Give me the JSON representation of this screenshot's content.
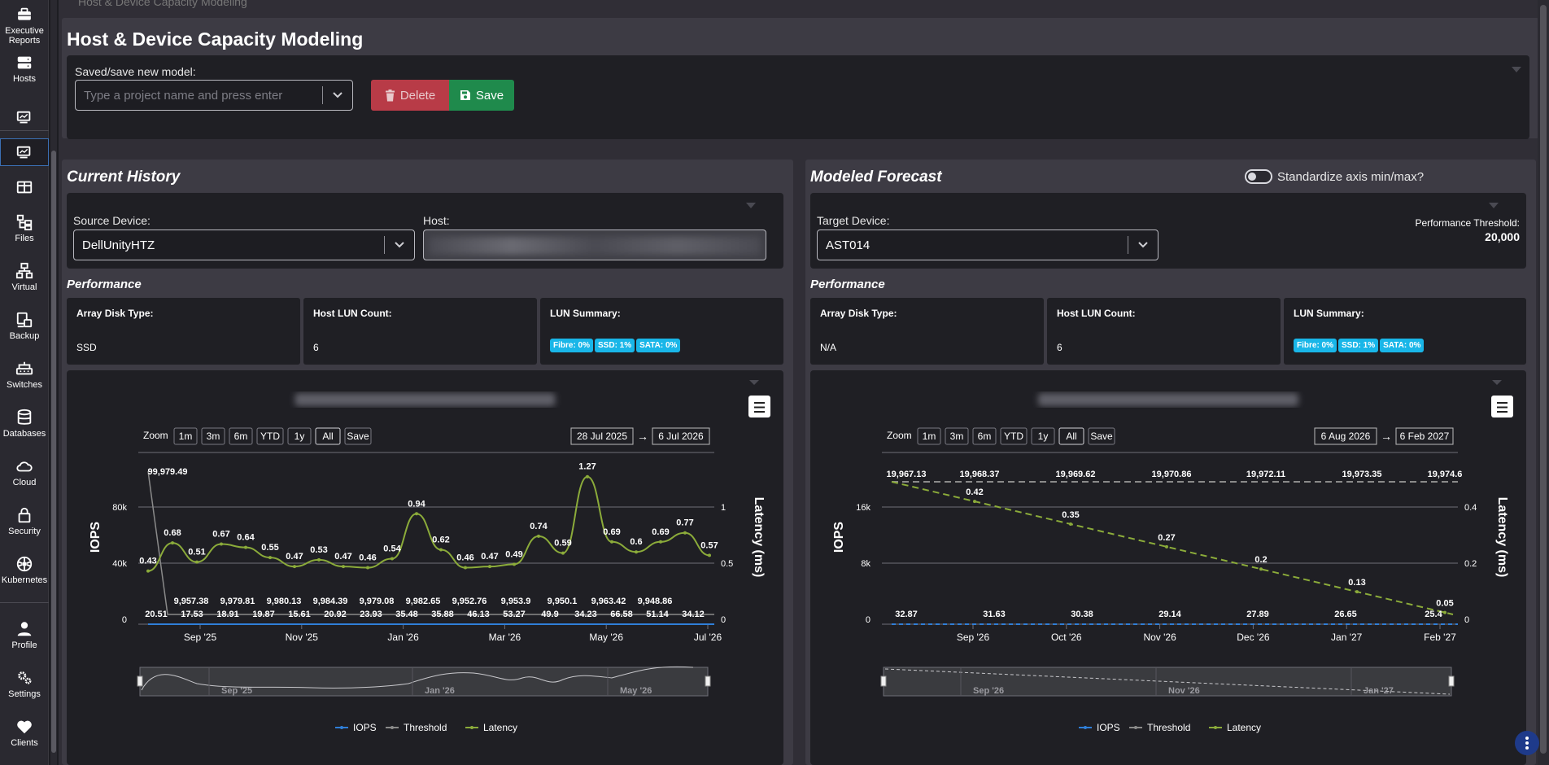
{
  "sidebar": {
    "items": [
      {
        "label": "Executive Reports",
        "icon": "briefcase-icon"
      },
      {
        "label": "Hosts",
        "icon": "server-icon"
      },
      {
        "label": "",
        "icon": "host-monitor-icon"
      },
      {
        "label": "",
        "icon": "host-monitor-active-icon"
      },
      {
        "label": "",
        "icon": "table-icon"
      },
      {
        "label": "Files",
        "icon": "files-icon"
      },
      {
        "label": "Virtual",
        "icon": "network-icon"
      },
      {
        "label": "Backup",
        "icon": "backup-icon"
      },
      {
        "label": "Switches",
        "icon": "switch-icon"
      },
      {
        "label": "Databases",
        "icon": "database-icon"
      },
      {
        "label": "Cloud",
        "icon": "cloud-icon"
      },
      {
        "label": "Security",
        "icon": "lock-icon"
      },
      {
        "label": "Kubernetes",
        "icon": "kubernetes-icon"
      },
      {
        "label": "Profile",
        "icon": "user-icon"
      },
      {
        "label": "Settings",
        "icon": "gear-icon"
      },
      {
        "label": "Clients",
        "icon": "heart-icon"
      }
    ]
  },
  "breadcrumb": "Host & Device Capacity Modeling",
  "page_title": "Host & Device Capacity Modeling",
  "model": {
    "label": "Saved/save new model:",
    "placeholder": "Type a project name and press enter",
    "delete_label": "Delete",
    "save_label": "Save"
  },
  "current": {
    "title": "Current History",
    "source_label": "Source Device:",
    "source_value": "DellUnityHTZ",
    "host_label": "Host:",
    "performance_title": "Performance",
    "array_disk_type_label": "Array Disk Type:",
    "array_disk_type": "SSD",
    "host_lun_count_label": "Host LUN Count:",
    "host_lun_count": "6",
    "lun_summary_label": "LUN Summary:",
    "badges": [
      "Fibre: 0%",
      "SSD: 1%",
      "SATA: 0%"
    ]
  },
  "forecast": {
    "title": "Modeled Forecast",
    "standardize_label": "Standardize axis min/max?",
    "target_label": "Target Device:",
    "target_value": "AST014",
    "threshold_label": "Performance Threshold:",
    "threshold_value": "20,000",
    "performance_title": "Performance",
    "array_disk_type_label": "Array Disk Type:",
    "array_disk_type": "N/A",
    "host_lun_count_label": "Host LUN Count:",
    "host_lun_count": "6",
    "lun_summary_label": "LUN Summary:",
    "badges": [
      "Fibre: 0%",
      "SSD: 1%",
      "SATA: 0%"
    ]
  },
  "colors": {
    "iops": "#2f7ed8",
    "threshold": "#8a8a8a",
    "latency": "#8bab3a",
    "delete": "#b83b47",
    "save": "#1f8a4c",
    "badge": "#19b6e8"
  },
  "chart_data": [
    {
      "type": "line",
      "zoom_buttons": [
        "1m",
        "3m",
        "6m",
        "YTD",
        "1y",
        "All",
        "Save"
      ],
      "zoom_label": "Zoom",
      "range_from": "28 Jul 2025",
      "range_to": "6 Jul 2026",
      "ylabel": "IOPS",
      "y2label": "Latency (ms)",
      "y_ticks": [
        "0",
        "40k",
        "80k"
      ],
      "y2_ticks": [
        "0",
        "0.5",
        "1"
      ],
      "ylim": [
        0,
        80000
      ],
      "y2lim": [
        0,
        1
      ],
      "x_ticks": [
        "Sep '25",
        "Nov '25",
        "Jan '26",
        "Mar '26",
        "May '26",
        "Jul '26"
      ],
      "navigator_ticks": [
        "Sep '25",
        "Jan '26",
        "May '26"
      ],
      "legend": [
        "IOPS",
        "Threshold",
        "Latency"
      ],
      "threshold_labels": [
        "99,979.49",
        "9,957.38",
        "9,979.81",
        "9,980.13",
        "9,984.39",
        "9,979.08",
        "9,982.65",
        "9,952.76",
        "9,953.9",
        "9,950.1",
        "9,963.42",
        "9,948.86"
      ],
      "iops_labels": [
        "20.51",
        "17.53",
        "18.91",
        "19.87",
        "15.61",
        "20.92",
        "23.93",
        "35.48",
        "35.88",
        "46.13",
        "53.27",
        "49.9",
        "34.23",
        "66.58",
        "51.14",
        "34.12"
      ],
      "latency_labels": [
        "0.43",
        "0.68",
        "0.51",
        "0.67",
        "0.64",
        "0.55",
        "0.47",
        "0.53",
        "0.47",
        "0.46",
        "0.54",
        "0.94",
        "0.62",
        "0.46",
        "0.47",
        "0.49",
        "0.74",
        "0.59",
        "1.27",
        "0.69",
        "0.6",
        "0.69",
        "0.77",
        "0.57"
      ],
      "latency_values": [
        0.43,
        0.68,
        0.51,
        0.67,
        0.64,
        0.55,
        0.47,
        0.53,
        0.47,
        0.46,
        0.54,
        0.94,
        0.62,
        0.46,
        0.47,
        0.49,
        0.74,
        0.59,
        1.27,
        0.69,
        0.6,
        0.69,
        0.77,
        0.57
      ]
    },
    {
      "type": "line",
      "zoom_buttons": [
        "1m",
        "3m",
        "6m",
        "YTD",
        "1y",
        "All",
        "Save"
      ],
      "zoom_label": "Zoom",
      "range_from": "6 Aug 2026",
      "range_to": "6 Feb 2027",
      "ylabel": "IOPS",
      "y2label": "Latency (ms)",
      "y_ticks": [
        "0",
        "8k",
        "16k"
      ],
      "y2_ticks": [
        "0",
        "0.2",
        "0.4"
      ],
      "ylim": [
        0,
        16000
      ],
      "y2lim": [
        0,
        0.4
      ],
      "x_ticks": [
        "Sep '26",
        "Oct '26",
        "Nov '26",
        "Dec '26",
        "Jan '27",
        "Feb '27"
      ],
      "navigator_ticks": [
        "Sep '26",
        "Nov '26",
        "Jan '27"
      ],
      "legend": [
        "IOPS",
        "Threshold",
        "Latency"
      ],
      "threshold_labels": [
        "19,967.13",
        "19,968.37",
        "19,969.62",
        "19,970.86",
        "19,972.11",
        "19,973.35",
        "19,974.6"
      ],
      "iops_labels": [
        "32.87",
        "31.63",
        "30.38",
        "29.14",
        "27.89",
        "26.65",
        "25.4"
      ],
      "latency_labels": [
        "0.42",
        "0.35",
        "0.27",
        "0.2",
        "0.13",
        "0.05"
      ],
      "latency_values": [
        0.42,
        0.35,
        0.27,
        0.2,
        0.13,
        0.05
      ]
    }
  ]
}
